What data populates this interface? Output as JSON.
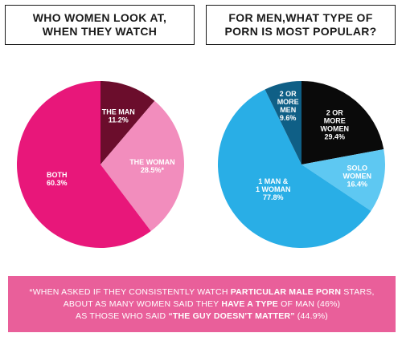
{
  "chart_data": [
    {
      "type": "pie",
      "title_lines": [
        "WHO WOMEN LOOK AT,",
        "WHEN THEY WATCH"
      ],
      "slices": [
        {
          "label_lines": [
            "THE MAN",
            "11.2%"
          ],
          "value": 11.2,
          "color": "#6b0d2c",
          "text_color": "#ffffff"
        },
        {
          "label_lines": [
            "THE WOMAN",
            "28.5%*"
          ],
          "value": 28.5,
          "color": "#f28dbd",
          "text_color": "#ffffff"
        },
        {
          "label_lines": [
            "BOTH",
            "60.3%"
          ],
          "value": 60.3,
          "color": "#e8177a",
          "text_color": "#ffffff"
        }
      ]
    },
    {
      "type": "pie",
      "title_lines": [
        "FOR MEN,WHAT TYPE OF",
        "PORN IS MOST POPULAR?"
      ],
      "slices": [
        {
          "label_lines": [
            "2 OR",
            "MORE",
            "WOMEN",
            "29.4%"
          ],
          "value": 29.4,
          "color": "#0a0a0a",
          "text_color": "#ffffff"
        },
        {
          "label_lines": [
            "SOLO",
            "WOMEN",
            "16.4%"
          ],
          "value": 16.4,
          "color": "#5ec8f2",
          "text_color": "#ffffff"
        },
        {
          "label_lines": [
            "1 MAN &",
            "1 WOMAN",
            "77.8%"
          ],
          "value": 77.8,
          "color": "#29aee6",
          "text_color": "#ffffff"
        },
        {
          "label_lines": [
            "2 OR",
            "MORE",
            "MEN",
            "9.6%"
          ],
          "value": 9.6,
          "color": "#0f5f86",
          "text_color": "#ffffff"
        }
      ]
    }
  ],
  "footnote": {
    "line1_a": "*WHEN ASKED IF THEY CONSISTENTLY WATCH ",
    "line1_b": "PARTICULAR MALE PORN",
    "line1_c": " STARS,",
    "line2_a": "ABOUT AS MANY WOMEN SAID THEY ",
    "line2_b": "HAVE A TYPE",
    "line2_c": " OF MAN (46%)",
    "line3_a": "AS THOSE WHO SAID ",
    "line3_b": "“THE GUY DOESN’T MATTER”",
    "line3_c": " (44.9%)"
  }
}
